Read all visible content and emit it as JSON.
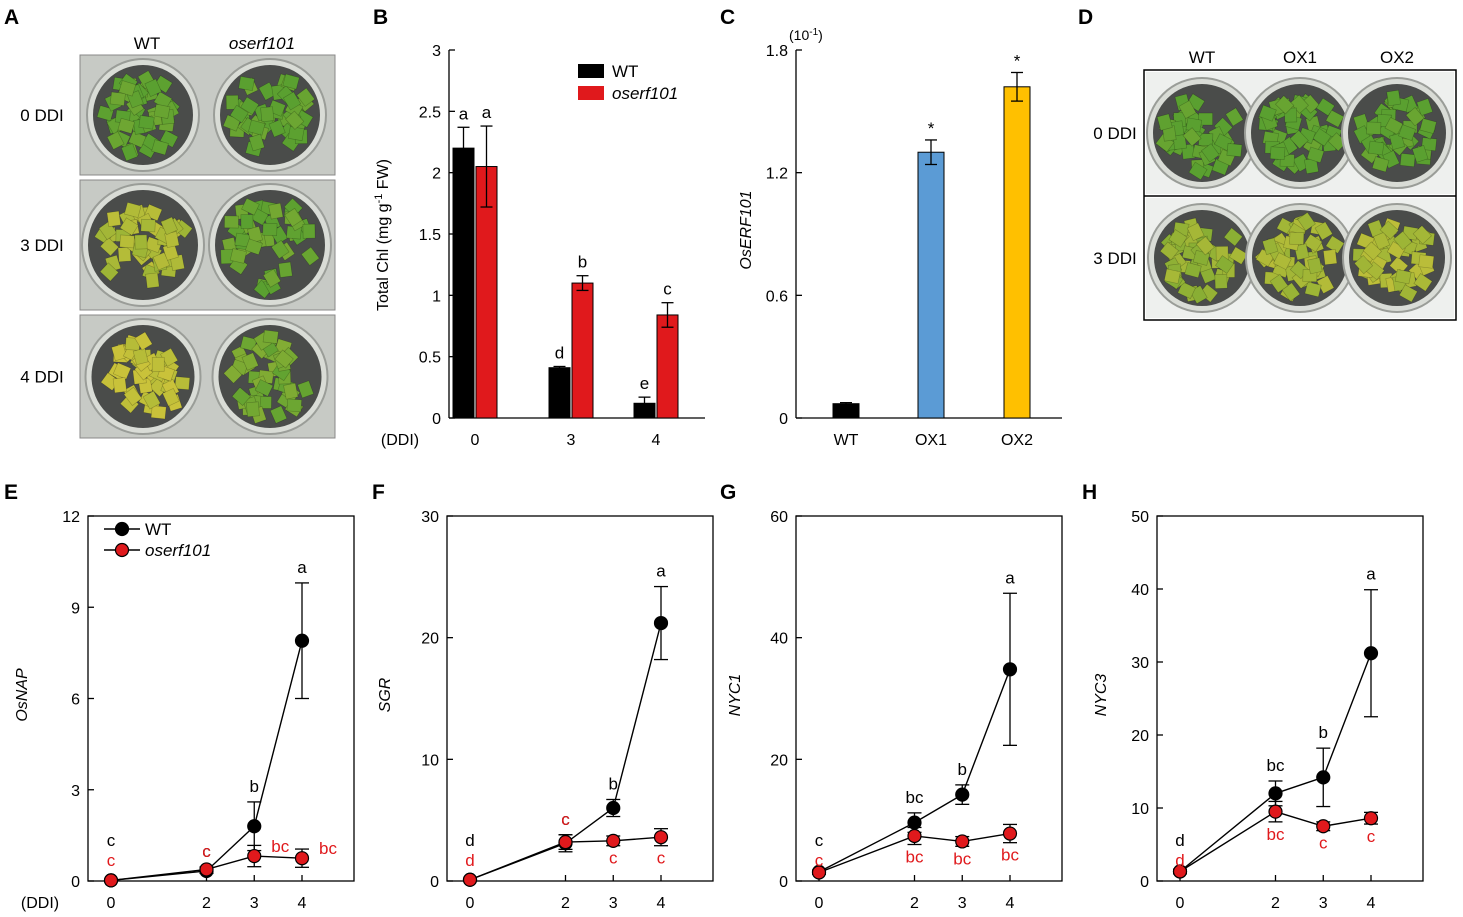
{
  "colors": {
    "wt": "#000000",
    "oserf101": "#e0191c",
    "ox1": "#5b9bd5",
    "ox2": "#ffc000",
    "leaf_green": "#5aa030",
    "leaf_yellow": "#c9c23a"
  },
  "photo_A": {
    "letter": "A",
    "columns": [
      "WT",
      "oserf101"
    ],
    "rows": [
      "0 DDI",
      "3 DDI",
      "4 DDI"
    ]
  },
  "photo_D": {
    "letter": "D",
    "columns": [
      "WT",
      "OX1",
      "OX2"
    ],
    "rows": [
      "0 DDI",
      "3 DDI"
    ]
  },
  "chart_data": [
    {
      "id": "B",
      "letter": "B",
      "type": "bar",
      "categories": [
        "0",
        "3",
        "4"
      ],
      "category_prefix": "(DDI)",
      "ylabel": "Total Chl (mg g",
      "ylabel_sup": "-1",
      "ylabel_tail": " FW)",
      "ylim": [
        0,
        3
      ],
      "yticks": [
        "0",
        "0.5",
        "1",
        "1.5",
        "2",
        "2.5",
        "3"
      ],
      "series": [
        {
          "name": "WT",
          "values": [
            2.2,
            0.41,
            0.12
          ],
          "errors": [
            0.17,
            0.01,
            0.05
          ],
          "letters": [
            "a",
            "d",
            "e"
          ]
        },
        {
          "name": "oserf101",
          "values": [
            2.05,
            1.1,
            0.84
          ],
          "errors": [
            0.33,
            0.06,
            0.1
          ],
          "letters": [
            "a",
            "b",
            "c"
          ]
        }
      ],
      "legend": [
        "WT",
        "oserf101"
      ]
    },
    {
      "id": "C",
      "letter": "C",
      "type": "bar",
      "categories": [
        "WT",
        "OX1",
        "OX2"
      ],
      "ylabel": "OsERF101",
      "scale_note": "(10",
      "scale_note_sup": "-1",
      "scale_note_tail": ")",
      "ylim": [
        0,
        1.8
      ],
      "yticks": [
        "0",
        "0.6",
        "1.2",
        "1.8"
      ],
      "values": [
        0.07,
        1.3,
        1.62
      ],
      "errors": [
        0.005,
        0.06,
        0.07
      ],
      "marks": [
        "",
        "*",
        "*"
      ]
    },
    {
      "id": "E",
      "letter": "E",
      "type": "line",
      "x": [
        "0",
        "2",
        "3",
        "4"
      ],
      "x_prefix": "(DDI)",
      "ylabel": "OsNAP",
      "ylim": [
        0,
        12
      ],
      "yticks": [
        "0",
        "3",
        "6",
        "9",
        "12"
      ],
      "series": [
        {
          "name": "WT",
          "values": [
            0.02,
            0.33,
            1.8,
            7.9
          ],
          "errors": [
            0.02,
            0.08,
            0.8,
            1.9
          ],
          "letters": [
            "c",
            "c",
            "b",
            "a"
          ]
        },
        {
          "name": "oserf101",
          "values": [
            0.02,
            0.38,
            0.82,
            0.75
          ],
          "errors": [
            0.02,
            0.08,
            0.35,
            0.3
          ],
          "letters": [
            "c",
            "c",
            "bc",
            "bc"
          ]
        }
      ],
      "legend": [
        "WT",
        "oserf101"
      ]
    },
    {
      "id": "F",
      "letter": "F",
      "type": "line",
      "x": [
        "0",
        "2",
        "3",
        "4"
      ],
      "ylabel": "SGR",
      "ylim": [
        0,
        30
      ],
      "yticks": [
        "0",
        "10",
        "20",
        "30"
      ],
      "series": [
        {
          "name": "WT",
          "values": [
            0.1,
            3.1,
            6.0,
            21.2
          ],
          "errors": [
            0.05,
            0.7,
            0.7,
            3.0
          ],
          "letters": [
            "d",
            "c",
            "b",
            "a"
          ]
        },
        {
          "name": "oserf101",
          "values": [
            0.1,
            3.2,
            3.3,
            3.6
          ],
          "errors": [
            0.05,
            0.6,
            0.4,
            0.7
          ],
          "letters": [
            "d",
            "c",
            "c",
            "c"
          ]
        }
      ]
    },
    {
      "id": "G",
      "letter": "G",
      "type": "line",
      "x": [
        "0",
        "2",
        "3",
        "4"
      ],
      "ylabel": "NYC1",
      "ylim": [
        0,
        60
      ],
      "yticks": [
        "0",
        "20",
        "40",
        "60"
      ],
      "series": [
        {
          "name": "WT",
          "values": [
            1.5,
            9.6,
            14.2,
            34.8
          ],
          "errors": [
            0.3,
            1.6,
            1.6,
            12.5
          ],
          "letters": [
            "c",
            "bc",
            "b",
            "a"
          ]
        },
        {
          "name": "oserf101",
          "values": [
            1.4,
            7.4,
            6.5,
            7.8
          ],
          "errors": [
            0.3,
            1.4,
            0.8,
            1.5
          ],
          "letters": [
            "c",
            "bc",
            "bc",
            "bc"
          ]
        }
      ]
    },
    {
      "id": "H",
      "letter": "H",
      "type": "line",
      "x": [
        "0",
        "2",
        "3",
        "4"
      ],
      "ylabel": "NYC3",
      "ylim": [
        0,
        50
      ],
      "yticks": [
        "0",
        "10",
        "20",
        "30",
        "40",
        "50"
      ],
      "series": [
        {
          "name": "WT",
          "values": [
            1.3,
            12.0,
            14.2,
            31.2
          ],
          "errors": [
            0.3,
            1.7,
            4.0,
            8.7
          ],
          "letters": [
            "d",
            "bc",
            "b",
            "a"
          ]
        },
        {
          "name": "oserf101",
          "values": [
            1.3,
            9.5,
            7.5,
            8.6
          ],
          "errors": [
            0.3,
            1.4,
            0.6,
            0.8
          ],
          "letters": [
            "d",
            "bc",
            "c",
            "c"
          ]
        }
      ]
    }
  ]
}
